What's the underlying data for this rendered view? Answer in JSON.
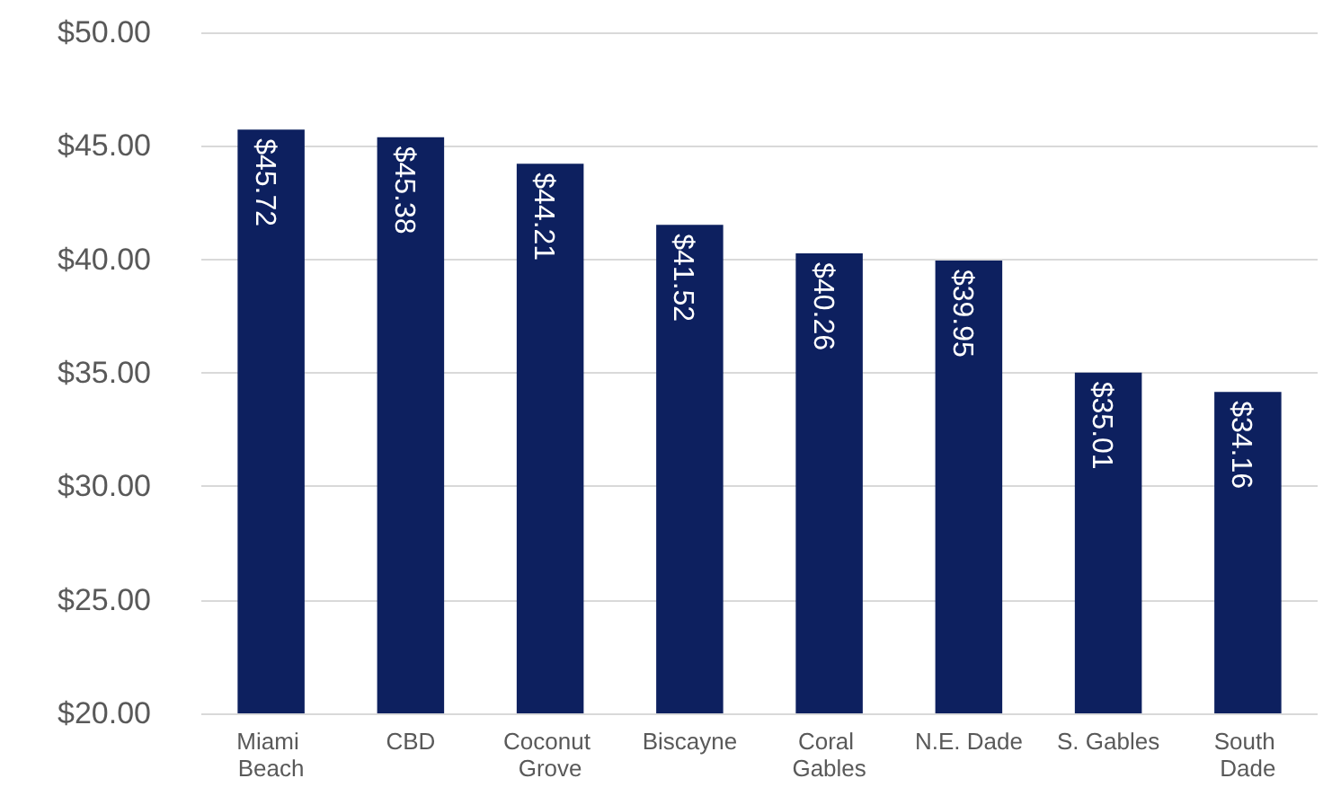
{
  "chart_data": {
    "type": "bar",
    "categories": [
      "Miami Beach",
      "CBD",
      "Coconut Grove",
      "Biscayne",
      "Coral Gables",
      "N.E. Dade",
      "S. Gables",
      "South Dade"
    ],
    "values": [
      45.72,
      45.38,
      44.21,
      41.52,
      40.26,
      39.95,
      35.01,
      34.16
    ],
    "value_labels": [
      "$45.72",
      "$45.38",
      "$44.21",
      "$41.52",
      "$40.26",
      "$39.95",
      "$35.01",
      "$34.16"
    ],
    "color": "#0d205f",
    "ylim": [
      20,
      50
    ],
    "yticks": [
      {
        "value": 20,
        "label": "$20.00"
      },
      {
        "value": 25,
        "label": "$25.00"
      },
      {
        "value": 30,
        "label": "$30.00"
      },
      {
        "value": 35,
        "label": "$35.00"
      },
      {
        "value": 40,
        "label": "$40.00"
      },
      {
        "value": 45,
        "label": "$45.00"
      },
      {
        "value": 50,
        "label": "$50.00"
      }
    ],
    "grid": "y"
  }
}
